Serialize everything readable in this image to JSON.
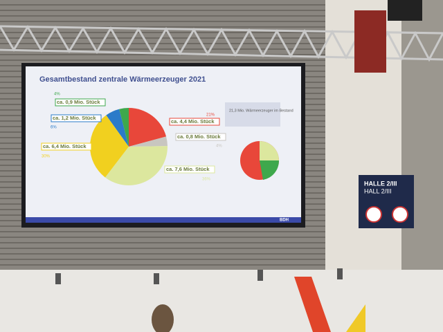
{
  "slide": {
    "title": "Gesamtbestand zentrale Wärmeerzeuger 2021",
    "pie": {
      "slices": [
        {
          "label": "ca. 4,4 Mio. Stück",
          "percent": 21,
          "percent_label": "21%",
          "color": "#e8473a"
        },
        {
          "label": "ca. 0,8 Mio. Stück",
          "percent": 4,
          "percent_label": "4%",
          "color": "#c8c6c0"
        },
        {
          "label": "ca. 7,6 Mio. Stück",
          "percent": 36,
          "percent_label": "36%",
          "color": "#dce79e"
        },
        {
          "label": "ca. 6,4 Mio. Stück",
          "percent": 30,
          "percent_label": "30%",
          "color": "#f1d01f"
        },
        {
          "label": "ca. 1,2 Mio. Stück",
          "percent": 6,
          "percent_label": "6%",
          "color": "#2b7bc9"
        },
        {
          "label": "ca. 0,9 Mio. Stück",
          "percent": 4,
          "percent_label": "4%",
          "color": "#3ea84c"
        }
      ]
    },
    "summary": "21,3 Mio. Wärmeerzeuger im Bestand",
    "logo": "BDH"
  },
  "sign": {
    "line1": "HALLE 2/III",
    "line2": "HALL 2/III"
  }
}
